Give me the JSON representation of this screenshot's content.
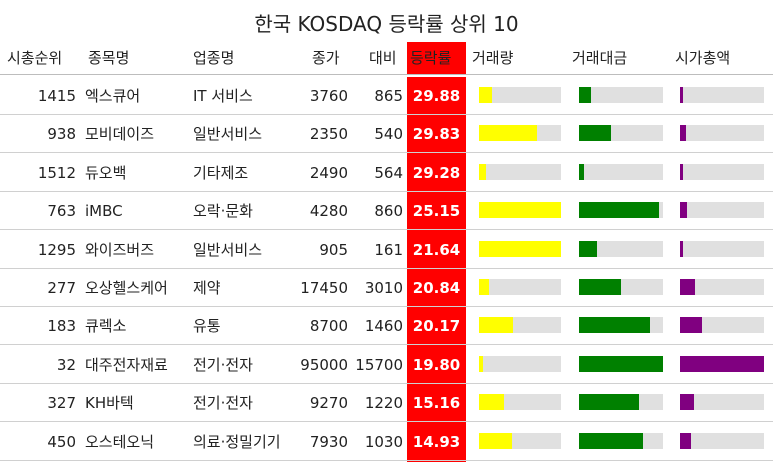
{
  "chart_data": {
    "type": "table",
    "title": "한국 KOSDAQ 등락률 상위 10",
    "columns": [
      "시총순위",
      "종목명",
      "업종명",
      "종가",
      "대비",
      "등락률",
      "거래량",
      "거래대금",
      "시가총액"
    ],
    "colors": {
      "rate_bg": "#ff0000",
      "volume": "#ffff00",
      "trade_value": "#008000",
      "market_cap": "#800080",
      "track": "#e0e0e0"
    },
    "rows": [
      {
        "rank": "1415",
        "name": "엑스큐어",
        "sector": "IT 서비스",
        "close": "3760",
        "change": "865",
        "rate": "29.88",
        "volume": 0.16,
        "trade_value": 0.14,
        "market_cap": 0.03
      },
      {
        "rank": "938",
        "name": "모비데이즈",
        "sector": "일반서비스",
        "close": "2350",
        "change": "540",
        "rate": "29.83",
        "volume": 0.71,
        "trade_value": 0.38,
        "market_cap": 0.07
      },
      {
        "rank": "1512",
        "name": "듀오백",
        "sector": "기타제조",
        "close": "2490",
        "change": "564",
        "rate": "29.28",
        "volume": 0.08,
        "trade_value": 0.06,
        "market_cap": 0.03
      },
      {
        "rank": "763",
        "name": "iMBC",
        "sector": "오락·문화",
        "close": "4280",
        "change": "860",
        "rate": "25.15",
        "volume": 1.0,
        "trade_value": 0.95,
        "market_cap": 0.08
      },
      {
        "rank": "1295",
        "name": "와이즈버즈",
        "sector": "일반서비스",
        "close": "905",
        "change": "161",
        "rate": "21.64",
        "volume": 1.0,
        "trade_value": 0.22,
        "market_cap": 0.03
      },
      {
        "rank": "277",
        "name": "오상헬스케어",
        "sector": "제약",
        "close": "17450",
        "change": "3010",
        "rate": "20.84",
        "volume": 0.12,
        "trade_value": 0.5,
        "market_cap": 0.18
      },
      {
        "rank": "183",
        "name": "큐렉소",
        "sector": "유통",
        "close": "8700",
        "change": "1460",
        "rate": "20.17",
        "volume": 0.41,
        "trade_value": 0.85,
        "market_cap": 0.26
      },
      {
        "rank": "32",
        "name": "대주전자재료",
        "sector": "전기·전자",
        "close": "95000",
        "change": "15700",
        "rate": "19.80",
        "volume": 0.05,
        "trade_value": 1.0,
        "market_cap": 1.0
      },
      {
        "rank": "327",
        "name": "KH바텍",
        "sector": "전기·전자",
        "close": "9270",
        "change": "1220",
        "rate": "15.16",
        "volume": 0.3,
        "trade_value": 0.72,
        "market_cap": 0.17
      },
      {
        "rank": "450",
        "name": "오스테오닉",
        "sector": "의료·정밀기기",
        "close": "7930",
        "change": "1030",
        "rate": "14.93",
        "volume": 0.4,
        "trade_value": 0.76,
        "market_cap": 0.13
      }
    ]
  }
}
